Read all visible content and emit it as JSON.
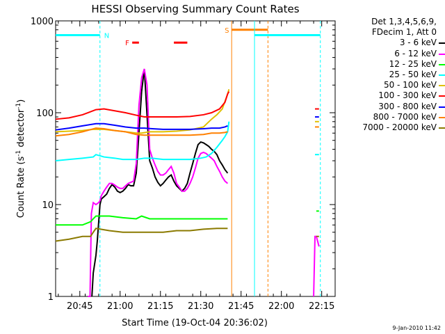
{
  "chart_data": {
    "type": "line",
    "title": "HESSI Observing Summary Count Rates",
    "xlabel": "Start Time (19-Oct-04 20:36:02)",
    "ylabel_parts": [
      "Count Rate (s",
      "-1",
      " detector",
      "-1",
      ")"
    ],
    "yscale": "log",
    "ylim": [
      1,
      1000
    ],
    "xlim_minutes_after_2036": [
      0,
      104
    ],
    "y_ticks": [
      "1",
      "10",
      "100",
      "1000"
    ],
    "x_ticks": [
      {
        "label": "20:45",
        "minute": 9
      },
      {
        "label": "21:00",
        "minute": 24
      },
      {
        "label": "21:15",
        "minute": 39
      },
      {
        "label": "21:30",
        "minute": 54
      },
      {
        "label": "21:45",
        "minute": 69
      },
      {
        "label": "22:00",
        "minute": 84
      },
      {
        "label": "22:15",
        "minute": 99
      }
    ],
    "legend_header": [
      "Det 1,3,4,5,6,9,",
      "FDecim 1, Att 0"
    ],
    "series": [
      {
        "name": "3 - 6 keV",
        "color": "#000000",
        "points": [
          [
            13.5,
            1
          ],
          [
            14,
            1.8
          ],
          [
            15,
            2.8
          ],
          [
            15.5,
            4
          ],
          [
            16.5,
            10
          ],
          [
            17,
            11.5
          ],
          [
            18,
            12.2
          ],
          [
            19,
            13
          ],
          [
            20,
            15
          ],
          [
            21,
            16.5
          ],
          [
            22,
            15.5
          ],
          [
            23,
            14
          ],
          [
            24,
            13.5
          ],
          [
            25,
            14
          ],
          [
            26,
            15
          ],
          [
            27,
            16.5
          ],
          [
            28,
            16
          ],
          [
            29,
            16
          ],
          [
            30,
            22
          ],
          [
            31,
            60
          ],
          [
            32,
            170
          ],
          [
            33,
            300
          ],
          [
            34,
            95
          ],
          [
            35,
            30
          ],
          [
            36,
            25
          ],
          [
            37,
            20
          ],
          [
            38,
            17.5
          ],
          [
            39,
            16
          ],
          [
            40,
            17
          ],
          [
            41,
            18.5
          ],
          [
            42,
            20
          ],
          [
            43,
            21
          ],
          [
            44,
            18
          ],
          [
            45,
            16
          ],
          [
            46,
            15
          ],
          [
            47,
            14
          ],
          [
            48,
            15
          ],
          [
            49,
            17
          ],
          [
            50,
            22
          ],
          [
            51,
            28
          ],
          [
            52,
            36
          ],
          [
            53,
            45
          ],
          [
            54,
            48
          ],
          [
            55,
            47
          ],
          [
            56,
            45
          ],
          [
            57,
            43
          ],
          [
            58,
            40
          ],
          [
            59,
            38
          ],
          [
            60,
            35
          ],
          [
            61,
            30
          ],
          [
            62,
            27
          ],
          [
            63,
            24
          ],
          [
            64,
            22
          ]
        ],
        "gap_after": [
          64
        ],
        "points_after": []
      },
      {
        "name": "6 - 12 keV",
        "color": "#ff00ff",
        "points": [
          [
            12,
            1
          ],
          [
            12.8,
            1
          ],
          [
            13.3,
            8
          ],
          [
            14,
            10.5
          ],
          [
            15,
            10
          ],
          [
            16,
            10.5
          ],
          [
            16.5,
            11
          ],
          [
            17,
            12.5
          ],
          [
            18,
            14
          ],
          [
            19,
            15.5
          ],
          [
            20,
            17
          ],
          [
            21,
            17
          ],
          [
            22,
            16.3
          ],
          [
            23,
            15.5
          ],
          [
            24,
            15
          ],
          [
            25,
            15
          ],
          [
            26,
            16
          ],
          [
            27,
            17
          ],
          [
            28,
            17.5
          ],
          [
            29,
            18
          ],
          [
            30,
            28
          ],
          [
            31,
            120
          ],
          [
            32,
            240
          ],
          [
            33,
            300
          ],
          [
            34,
            200
          ],
          [
            35,
            40
          ],
          [
            36,
            32
          ],
          [
            37,
            27
          ],
          [
            38,
            23
          ],
          [
            39,
            21
          ],
          [
            40,
            21
          ],
          [
            41,
            22
          ],
          [
            42,
            24
          ],
          [
            43,
            26
          ],
          [
            44,
            22
          ],
          [
            45,
            17
          ],
          [
            46,
            15.5
          ],
          [
            47,
            14
          ],
          [
            48,
            14
          ],
          [
            49,
            15
          ],
          [
            50,
            17
          ],
          [
            51,
            20
          ],
          [
            52,
            25
          ],
          [
            53,
            32
          ],
          [
            54,
            36
          ],
          [
            55,
            37
          ],
          [
            56,
            36
          ],
          [
            57,
            34
          ],
          [
            58,
            32
          ],
          [
            59,
            30
          ],
          [
            60,
            26
          ],
          [
            61,
            23
          ],
          [
            62,
            20
          ],
          [
            63,
            18
          ],
          [
            64,
            17
          ]
        ],
        "points_after": [
          [
            96,
            1
          ],
          [
            96.5,
            4.5
          ],
          [
            97,
            4.5
          ],
          [
            98,
            3.5
          ]
        ]
      },
      {
        "name": "12 - 25 keV",
        "color": "#00ff00",
        "points": [
          [
            0,
            6
          ],
          [
            5,
            6
          ],
          [
            10,
            6
          ],
          [
            13,
            6.5
          ],
          [
            14,
            7
          ],
          [
            15,
            7.5
          ],
          [
            20,
            7.5
          ],
          [
            25,
            7.2
          ],
          [
            30,
            7
          ],
          [
            32,
            7.5
          ],
          [
            35,
            7
          ],
          [
            40,
            7
          ],
          [
            45,
            7
          ],
          [
            50,
            7
          ],
          [
            55,
            7
          ],
          [
            60,
            7
          ],
          [
            64,
            7
          ]
        ],
        "points_after": [
          [
            97,
            8.5
          ],
          [
            98,
            8.5
          ]
        ]
      },
      {
        "name": "25 - 50 keV",
        "color": "#00ffff",
        "points": [
          [
            0,
            30
          ],
          [
            5,
            31
          ],
          [
            10,
            32
          ],
          [
            14,
            33
          ],
          [
            15,
            35
          ],
          [
            18,
            33
          ],
          [
            22,
            32
          ],
          [
            25,
            31
          ],
          [
            30,
            31
          ],
          [
            33,
            32
          ],
          [
            36,
            32
          ],
          [
            40,
            31
          ],
          [
            45,
            31
          ],
          [
            50,
            31
          ],
          [
            54,
            32
          ],
          [
            56,
            33
          ],
          [
            58,
            36
          ],
          [
            60,
            42
          ],
          [
            62,
            50
          ],
          [
            63,
            55
          ],
          [
            64,
            62
          ],
          [
            64.5,
            80
          ]
        ],
        "points_after": [
          [
            96.5,
            35
          ],
          [
            98,
            35
          ]
        ]
      },
      {
        "name": "50 - 100 keV",
        "color": "#e0c000",
        "points": [
          [
            0,
            62
          ],
          [
            5,
            63
          ],
          [
            10,
            64
          ],
          [
            14,
            66
          ],
          [
            18,
            66
          ],
          [
            22,
            64
          ],
          [
            26,
            62
          ],
          [
            30,
            60
          ],
          [
            32,
            60
          ],
          [
            35,
            62
          ],
          [
            40,
            62
          ],
          [
            45,
            63
          ],
          [
            50,
            65
          ],
          [
            55,
            70
          ],
          [
            58,
            85
          ],
          [
            60,
            95
          ],
          [
            62,
            110
          ],
          [
            64,
            160
          ],
          [
            64.5,
            180
          ]
        ],
        "points_after": [
          [
            96.5,
            80
          ],
          [
            98,
            80
          ]
        ]
      },
      {
        "name": "100 - 300 keV",
        "color": "#ff0000",
        "points": [
          [
            0,
            85
          ],
          [
            5,
            88
          ],
          [
            10,
            95
          ],
          [
            15,
            108
          ],
          [
            18,
            110
          ],
          [
            22,
            105
          ],
          [
            26,
            100
          ],
          [
            30,
            94
          ],
          [
            33,
            90
          ],
          [
            36,
            90
          ],
          [
            40,
            90
          ],
          [
            45,
            90
          ],
          [
            50,
            91
          ],
          [
            55,
            95
          ],
          [
            58,
            100
          ],
          [
            61,
            110
          ],
          [
            63,
            130
          ],
          [
            64,
            160
          ],
          [
            64.5,
            170
          ]
        ],
        "points_after": [
          [
            96.5,
            110
          ],
          [
            98,
            110
          ]
        ]
      },
      {
        "name": "300 - 800 keV",
        "color": "#0000ff",
        "points": [
          [
            0,
            65
          ],
          [
            5,
            68
          ],
          [
            10,
            72
          ],
          [
            15,
            76
          ],
          [
            18,
            76
          ],
          [
            22,
            73
          ],
          [
            26,
            70
          ],
          [
            30,
            68
          ],
          [
            33,
            68
          ],
          [
            36,
            67
          ],
          [
            40,
            66
          ],
          [
            45,
            66
          ],
          [
            50,
            66
          ],
          [
            55,
            67
          ],
          [
            58,
            68
          ],
          [
            61,
            68
          ],
          [
            63,
            70
          ],
          [
            64,
            72
          ]
        ],
        "points_after": [
          [
            96.5,
            90
          ],
          [
            98,
            90
          ]
        ]
      },
      {
        "name": "800 - 7000 keV",
        "color": "#ff8000",
        "points": [
          [
            0,
            56
          ],
          [
            5,
            58
          ],
          [
            10,
            62
          ],
          [
            15,
            68
          ],
          [
            18,
            67
          ],
          [
            22,
            64
          ],
          [
            26,
            62
          ],
          [
            30,
            58
          ],
          [
            33,
            57
          ],
          [
            36,
            57
          ],
          [
            40,
            57
          ],
          [
            45,
            57
          ],
          [
            50,
            57
          ],
          [
            55,
            58
          ],
          [
            58,
            60
          ],
          [
            61,
            60
          ],
          [
            63,
            61
          ],
          [
            64,
            62
          ]
        ],
        "points_after": [
          [
            96.5,
            70
          ],
          [
            98,
            70
          ]
        ]
      },
      {
        "name": "7000 - 20000 keV",
        "color": "#8b7a00",
        "points": [
          [
            0,
            4
          ],
          [
            5,
            4.2
          ],
          [
            10,
            4.5
          ],
          [
            13,
            4.5
          ],
          [
            14,
            5
          ],
          [
            15,
            5.5
          ],
          [
            20,
            5.2
          ],
          [
            25,
            5
          ],
          [
            30,
            5
          ],
          [
            35,
            5
          ],
          [
            40,
            5
          ],
          [
            45,
            5.2
          ],
          [
            50,
            5.2
          ],
          [
            55,
            5.4
          ],
          [
            60,
            5.5
          ],
          [
            64,
            5.5
          ]
        ],
        "points_after": [
          [
            97,
            4.5
          ],
          [
            98,
            4.5
          ]
        ]
      }
    ],
    "annotations": [
      {
        "label": "N",
        "color": "#00ffff",
        "bar_start": 0,
        "bar_end": 16.5,
        "bar_y": 700,
        "line_minute": 16.5,
        "line_style": "dashed"
      },
      {
        "label": "F",
        "color": "#ff0000",
        "segments": [
          [
            28.5,
            31
          ],
          [
            44,
            49
          ]
        ],
        "bar_y": 580
      },
      {
        "label": "S",
        "color": "#ff8000",
        "bar_start": 65.5,
        "bar_end": 79,
        "bar_y": 800,
        "line_minute": 65.5,
        "line2_minute": 79,
        "line2_style": "dashed"
      },
      {
        "label": "",
        "color": "#00ffff",
        "bar_start": 74,
        "bar_end": 98.5,
        "bar_y": 700,
        "line_minute": 74,
        "line2_minute": 98.5,
        "line2_style": "dashed"
      }
    ]
  },
  "footer_text": "9-Jan-2010 11:42"
}
